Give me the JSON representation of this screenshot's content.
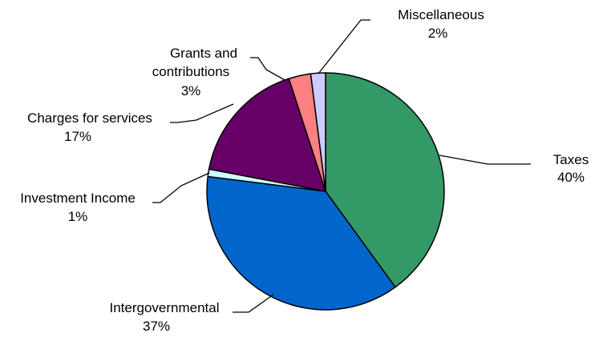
{
  "chart_data": {
    "type": "pie",
    "slices": [
      {
        "label": "Taxes",
        "value": 40,
        "percent_label": "40%",
        "color": "#339966"
      },
      {
        "label": "Intergovernmental",
        "value": 37,
        "percent_label": "37%",
        "color": "#0066CC"
      },
      {
        "label": "Investment Income",
        "value": 1,
        "percent_label": "1%",
        "color": "#CCFFFF"
      },
      {
        "label": "Charges for services",
        "value": 17,
        "percent_label": "17%",
        "color": "#660066"
      },
      {
        "label": "Grants and",
        "label_line2": "contributions",
        "value": 3,
        "percent_label": "3%",
        "color": "#FF8080"
      },
      {
        "label": "Miscellaneous",
        "value": 2,
        "percent_label": "2%",
        "color": "#CCCCFF"
      }
    ],
    "start_angle": "12 o'clock",
    "direction": "clockwise",
    "legend": "none"
  }
}
